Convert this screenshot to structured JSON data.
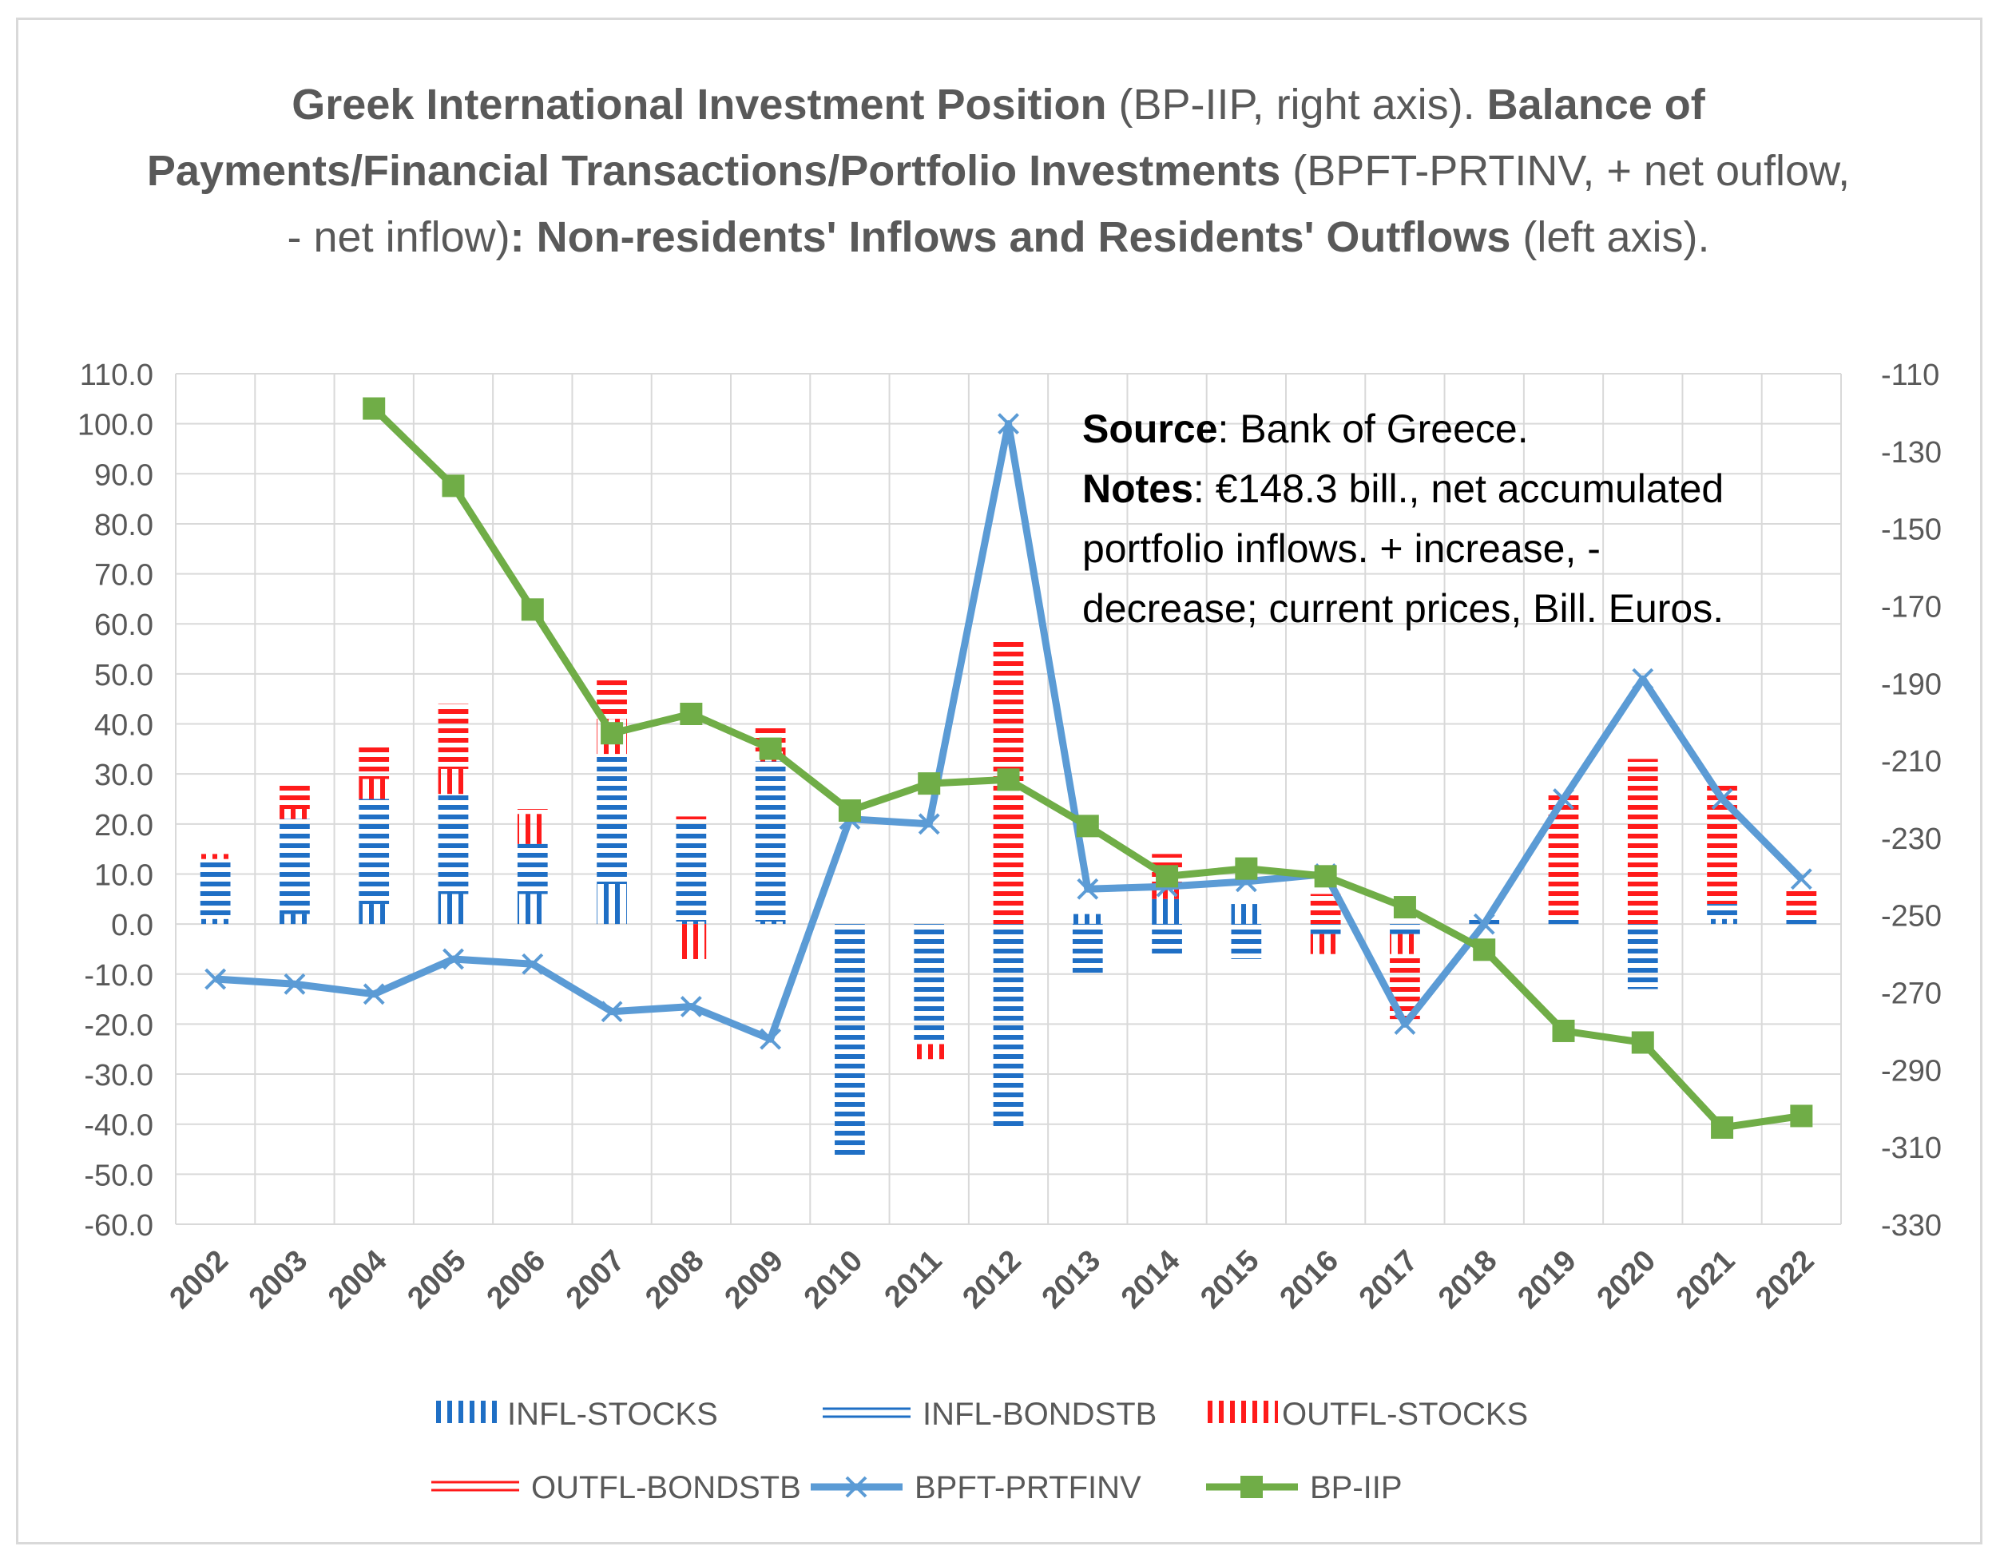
{
  "title": {
    "p1_bold": "Greek International Investment Position",
    "p1_rest": " (BP-IIP, right axis).  ",
    "p2_bold": "Balance of Payments/Financial Transactions/Portfolio Investments",
    "p2_rest": " (BPFT-PRTINV, + net ouflow, - net inflow)",
    "p3_bold": ": Non-residents' Inflows and Residents' Outflows",
    "p3_rest": " (left axis)."
  },
  "notes": {
    "source_label": "Source",
    "source_text": ": Bank of Greece.",
    "notes_label": "Notes",
    "notes_line1": ":  €148.3 bill., net accumulated",
    "notes_line2": "portfolio inflows. + increase, -",
    "notes_line3": "decrease; current prices, Bill. Euros."
  },
  "colors": {
    "infl": "#1f6fc5",
    "outfl": "#ff1a1a",
    "bpft": "#5b9bd5",
    "iip": "#70ad47",
    "grid": "#d9d9d9",
    "axis_text": "#595959"
  },
  "chart_data": {
    "type": "bar",
    "categories": [
      "2002",
      "2003",
      "2004",
      "2005",
      "2006",
      "2007",
      "2008",
      "2009",
      "2010",
      "2011",
      "2012",
      "2013",
      "2014",
      "2015",
      "2016",
      "2017",
      "2018",
      "2019",
      "2020",
      "2021",
      "2022"
    ],
    "left_axis": {
      "ylim": [
        -60,
        110
      ],
      "ticks": [
        "110.0",
        "100.0",
        "90.0",
        "80.0",
        "70.0",
        "60.0",
        "50.0",
        "40.0",
        "30.0",
        "20.0",
        "10.0",
        "0.0",
        "-10.0",
        "-20.0",
        "-30.0",
        "-40.0",
        "-50.0",
        "-60.0"
      ]
    },
    "right_axis": {
      "ylim": [
        -330,
        -110
      ],
      "ticks": [
        "-110",
        "-130",
        "-150",
        "-170",
        "-190",
        "-210",
        "-230",
        "-250",
        "-270",
        "-290",
        "-310",
        "-330"
      ]
    },
    "stacked_series": [
      {
        "name": "INFL-STOCKS",
        "values": [
          1,
          2,
          4,
          6,
          6,
          8,
          0.5,
          0.5,
          0,
          0,
          0,
          2,
          5,
          4,
          0,
          0,
          0,
          0,
          0,
          1,
          0
        ],
        "pattern": "vertical",
        "color_key": "infl"
      },
      {
        "name": "INFL-BONDSTB",
        "values": [
          12,
          19,
          21,
          20,
          10,
          26,
          20,
          32,
          -47,
          -24,
          -41,
          -10,
          -6,
          -7,
          -2,
          -2,
          1,
          1,
          -13,
          3,
          1
        ],
        "pattern": "horizontal",
        "color_key": "infl"
      },
      {
        "name": "OUTFL-STOCKS",
        "values": [
          1,
          2,
          4,
          5,
          6,
          7,
          -7,
          2,
          0,
          -3,
          0,
          0,
          3,
          0,
          -4,
          -4,
          0,
          0,
          0,
          0,
          0
        ],
        "pattern": "vertical",
        "color_key": "outfl"
      },
      {
        "name": "OUTFL-BONDSTB",
        "values": [
          0,
          5,
          7,
          13,
          1,
          8,
          1,
          5,
          0,
          0,
          57,
          0,
          6,
          0,
          6,
          -13,
          0,
          25,
          33,
          24,
          6
        ],
        "pattern": "horizontal",
        "color_key": "outfl"
      }
    ],
    "lines": [
      {
        "name": "BPFT-PRTFINV",
        "axis": "left",
        "marker": "x",
        "values": [
          -11,
          -12,
          -14,
          -7,
          -8,
          -17.5,
          -16.5,
          -23,
          21,
          20,
          100,
          7,
          7.5,
          8.5,
          10,
          -20,
          0,
          25,
          49,
          25,
          9
        ]
      },
      {
        "name": "BP-IIP",
        "axis": "right",
        "marker": "square",
        "values": [
          null,
          null,
          -119,
          -139,
          -171,
          -203,
          -198,
          -207,
          -223,
          -216,
          -215,
          -227,
          -240,
          -238,
          -240,
          -248,
          -259,
          -280,
          -283,
          -305,
          -302
        ]
      }
    ],
    "legend_position": "bottom"
  }
}
